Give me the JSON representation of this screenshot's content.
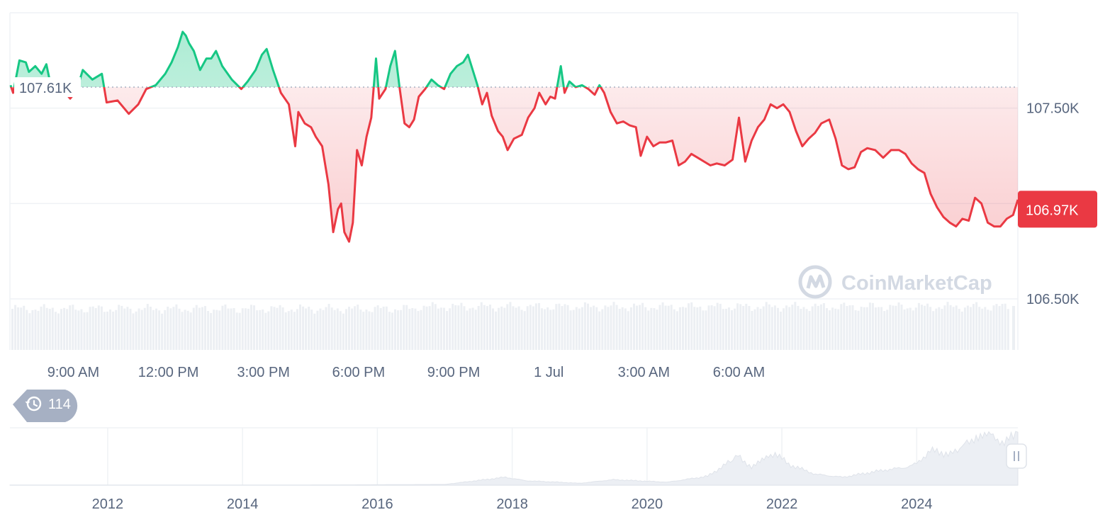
{
  "chart_data": {
    "type": "line",
    "title": "",
    "xlabel": "",
    "ylabel": "",
    "x_ticks": [
      "9:00 AM",
      "12:00 PM",
      "3:00 PM",
      "6:00 PM",
      "9:00 PM",
      "1 Jul",
      "3:00 AM",
      "6:00 AM"
    ],
    "x_hours": [
      7,
      9,
      12,
      15,
      18,
      21,
      24,
      27,
      30,
      31
    ],
    "ylim": [
      106.5,
      108.0
    ],
    "y_ticks": [
      {
        "value": 107.5,
        "label": "107.50K"
      },
      {
        "value": 106.5,
        "label": "106.50K"
      }
    ],
    "reference": {
      "value": 107.61,
      "label": "107.61K"
    },
    "current": {
      "value": 106.97,
      "label": "106.97K"
    },
    "series": [
      {
        "points": [
          [
            7.02,
            107.62
          ],
          [
            7.1,
            107.58
          ],
          [
            7.3,
            107.75
          ],
          [
            7.5,
            107.74
          ],
          [
            7.6,
            107.69
          ],
          [
            7.8,
            107.72
          ],
          [
            8.0,
            107.68
          ],
          [
            8.15,
            107.73
          ],
          [
            8.25,
            107.65
          ],
          [
            8.6,
            107.61
          ],
          [
            8.9,
            107.55
          ],
          [
            9.1,
            107.59
          ],
          [
            9.3,
            107.7
          ],
          [
            9.6,
            107.65
          ],
          [
            9.9,
            107.68
          ],
          [
            10.05,
            107.53
          ],
          [
            10.4,
            107.54
          ],
          [
            10.75,
            107.47
          ],
          [
            11.05,
            107.52
          ],
          [
            11.3,
            107.6
          ],
          [
            11.6,
            107.62
          ],
          [
            11.9,
            107.68
          ],
          [
            12.1,
            107.74
          ],
          [
            12.3,
            107.82
          ],
          [
            12.45,
            107.9
          ],
          [
            12.55,
            107.88
          ],
          [
            12.65,
            107.84
          ],
          [
            12.8,
            107.8
          ],
          [
            13.0,
            107.7
          ],
          [
            13.2,
            107.76
          ],
          [
            13.35,
            107.76
          ],
          [
            13.5,
            107.8
          ],
          [
            13.7,
            107.72
          ],
          [
            14.0,
            107.65
          ],
          [
            14.3,
            107.6
          ],
          [
            14.5,
            107.64
          ],
          [
            14.75,
            107.7
          ],
          [
            14.95,
            107.78
          ],
          [
            15.1,
            107.81
          ],
          [
            15.3,
            107.7
          ],
          [
            15.55,
            107.58
          ],
          [
            15.8,
            107.52
          ],
          [
            16.0,
            107.3
          ],
          [
            16.1,
            107.48
          ],
          [
            16.3,
            107.42
          ],
          [
            16.5,
            107.4
          ],
          [
            16.65,
            107.35
          ],
          [
            16.85,
            107.3
          ],
          [
            17.05,
            107.1
          ],
          [
            17.2,
            106.85
          ],
          [
            17.35,
            106.97
          ],
          [
            17.45,
            107.0
          ],
          [
            17.55,
            106.85
          ],
          [
            17.7,
            106.8
          ],
          [
            17.82,
            106.9
          ],
          [
            17.95,
            107.28
          ],
          [
            18.1,
            107.2
          ],
          [
            18.25,
            107.35
          ],
          [
            18.4,
            107.45
          ],
          [
            18.55,
            107.76
          ],
          [
            18.65,
            107.55
          ],
          [
            18.85,
            107.6
          ],
          [
            19.0,
            107.72
          ],
          [
            19.15,
            107.8
          ],
          [
            19.3,
            107.6
          ],
          [
            19.45,
            107.42
          ],
          [
            19.6,
            107.4
          ],
          [
            19.75,
            107.44
          ],
          [
            19.9,
            107.56
          ],
          [
            20.1,
            107.6
          ],
          [
            20.3,
            107.65
          ],
          [
            20.5,
            107.62
          ],
          [
            20.7,
            107.6
          ],
          [
            20.9,
            107.68
          ],
          [
            21.1,
            107.72
          ],
          [
            21.3,
            107.74
          ],
          [
            21.45,
            107.78
          ],
          [
            21.6,
            107.7
          ],
          [
            21.75,
            107.62
          ],
          [
            21.9,
            107.52
          ],
          [
            22.05,
            107.58
          ],
          [
            22.2,
            107.46
          ],
          [
            22.4,
            107.38
          ],
          [
            22.55,
            107.35
          ],
          [
            22.7,
            107.28
          ],
          [
            22.9,
            107.34
          ],
          [
            23.15,
            107.36
          ],
          [
            23.35,
            107.45
          ],
          [
            23.55,
            107.5
          ],
          [
            23.7,
            107.58
          ],
          [
            23.9,
            107.52
          ],
          [
            24.05,
            107.56
          ],
          [
            24.2,
            107.55
          ],
          [
            24.38,
            107.72
          ],
          [
            24.5,
            107.58
          ],
          [
            24.65,
            107.64
          ],
          [
            24.85,
            107.61
          ],
          [
            25.05,
            107.62
          ],
          [
            25.25,
            107.6
          ],
          [
            25.45,
            107.57
          ],
          [
            25.6,
            107.62
          ],
          [
            25.75,
            107.58
          ],
          [
            25.95,
            107.48
          ],
          [
            26.15,
            107.42
          ],
          [
            26.35,
            107.43
          ],
          [
            26.55,
            107.41
          ],
          [
            26.75,
            107.4
          ],
          [
            26.9,
            107.25
          ],
          [
            27.1,
            107.35
          ],
          [
            27.3,
            107.3
          ],
          [
            27.5,
            107.32
          ],
          [
            27.7,
            107.32
          ],
          [
            27.9,
            107.33
          ],
          [
            28.1,
            107.2
          ],
          [
            28.3,
            107.22
          ],
          [
            28.5,
            107.26
          ],
          [
            28.7,
            107.24
          ],
          [
            28.9,
            107.22
          ],
          [
            29.1,
            107.2
          ],
          [
            29.3,
            107.21
          ],
          [
            29.55,
            107.2
          ],
          [
            29.8,
            107.23
          ],
          [
            30.0,
            107.45
          ],
          [
            30.2,
            107.22
          ],
          [
            30.4,
            107.33
          ],
          [
            30.6,
            107.4
          ],
          [
            30.8,
            107.44
          ],
          [
            31.0,
            107.52
          ],
          [
            31.2,
            107.5
          ],
          [
            31.4,
            107.52
          ],
          [
            31.6,
            107.48
          ],
          [
            31.8,
            107.38
          ],
          [
            32.0,
            107.3
          ],
          [
            32.2,
            107.34
          ],
          [
            32.4,
            107.37
          ],
          [
            32.6,
            107.42
          ],
          [
            32.85,
            107.44
          ],
          [
            33.05,
            107.34
          ],
          [
            33.25,
            107.2
          ],
          [
            33.45,
            107.18
          ],
          [
            33.65,
            107.19
          ],
          [
            33.85,
            107.27
          ],
          [
            34.05,
            107.29
          ],
          [
            34.3,
            107.28
          ],
          [
            34.55,
            107.24
          ],
          [
            34.8,
            107.28
          ],
          [
            35.05,
            107.28
          ],
          [
            35.25,
            107.26
          ],
          [
            35.45,
            107.21
          ],
          [
            35.65,
            107.18
          ],
          [
            35.85,
            107.16
          ],
          [
            36.05,
            107.05
          ],
          [
            36.25,
            106.98
          ],
          [
            36.45,
            106.93
          ],
          [
            36.65,
            106.9
          ],
          [
            36.85,
            106.88
          ],
          [
            37.05,
            106.92
          ],
          [
            37.25,
            106.91
          ],
          [
            37.45,
            107.03
          ],
          [
            37.65,
            107.0
          ],
          [
            37.85,
            106.9
          ],
          [
            38.05,
            106.88
          ],
          [
            38.25,
            106.88
          ],
          [
            38.45,
            106.92
          ],
          [
            38.65,
            106.94
          ],
          [
            38.8,
            107.02
          ]
        ]
      }
    ],
    "colors": {
      "up": "#16c784",
      "down": "#ea3943",
      "up_fill": "#d0f4e3",
      "down_fill": "#fde3e4",
      "label_bg": "#ea3943"
    },
    "history_badge": {
      "icon": "history-icon",
      "count": "114"
    },
    "watermark": {
      "text": "CoinMarketCap",
      "icon": "coinmarketcap-logo"
    },
    "navigator": {
      "x_ticks": [
        "2012",
        "2014",
        "2016",
        "2018",
        "2020",
        "2022",
        "2024"
      ],
      "tick_years": [
        2012,
        2014,
        2016,
        2018,
        2020,
        2022,
        2024
      ],
      "xlim_years": [
        2010.55,
        2025.5
      ],
      "handle_icon": "pause-handle-icon",
      "history": [
        [
          2010.55,
          0.1
        ],
        [
          2013.0,
          0.1
        ],
        [
          2015.0,
          0.2
        ],
        [
          2017.0,
          1.5
        ],
        [
          2017.9,
          16
        ],
        [
          2018.2,
          9
        ],
        [
          2018.6,
          6.5
        ],
        [
          2019.0,
          3.8
        ],
        [
          2019.5,
          11
        ],
        [
          2020.0,
          8
        ],
        [
          2020.3,
          6
        ],
        [
          2020.9,
          18
        ],
        [
          2021.2,
          45
        ],
        [
          2021.35,
          60
        ],
        [
          2021.55,
          35
        ],
        [
          2021.8,
          58
        ],
        [
          2021.9,
          65
        ],
        [
          2022.1,
          42
        ],
        [
          2022.5,
          22
        ],
        [
          2022.9,
          16
        ],
        [
          2023.2,
          23
        ],
        [
          2023.5,
          30
        ],
        [
          2023.8,
          35
        ],
        [
          2024.0,
          43
        ],
        [
          2024.2,
          70
        ],
        [
          2024.5,
          62
        ],
        [
          2024.85,
          95
        ],
        [
          2025.1,
          100
        ],
        [
          2025.3,
          85
        ],
        [
          2025.5,
          107
        ]
      ]
    }
  }
}
